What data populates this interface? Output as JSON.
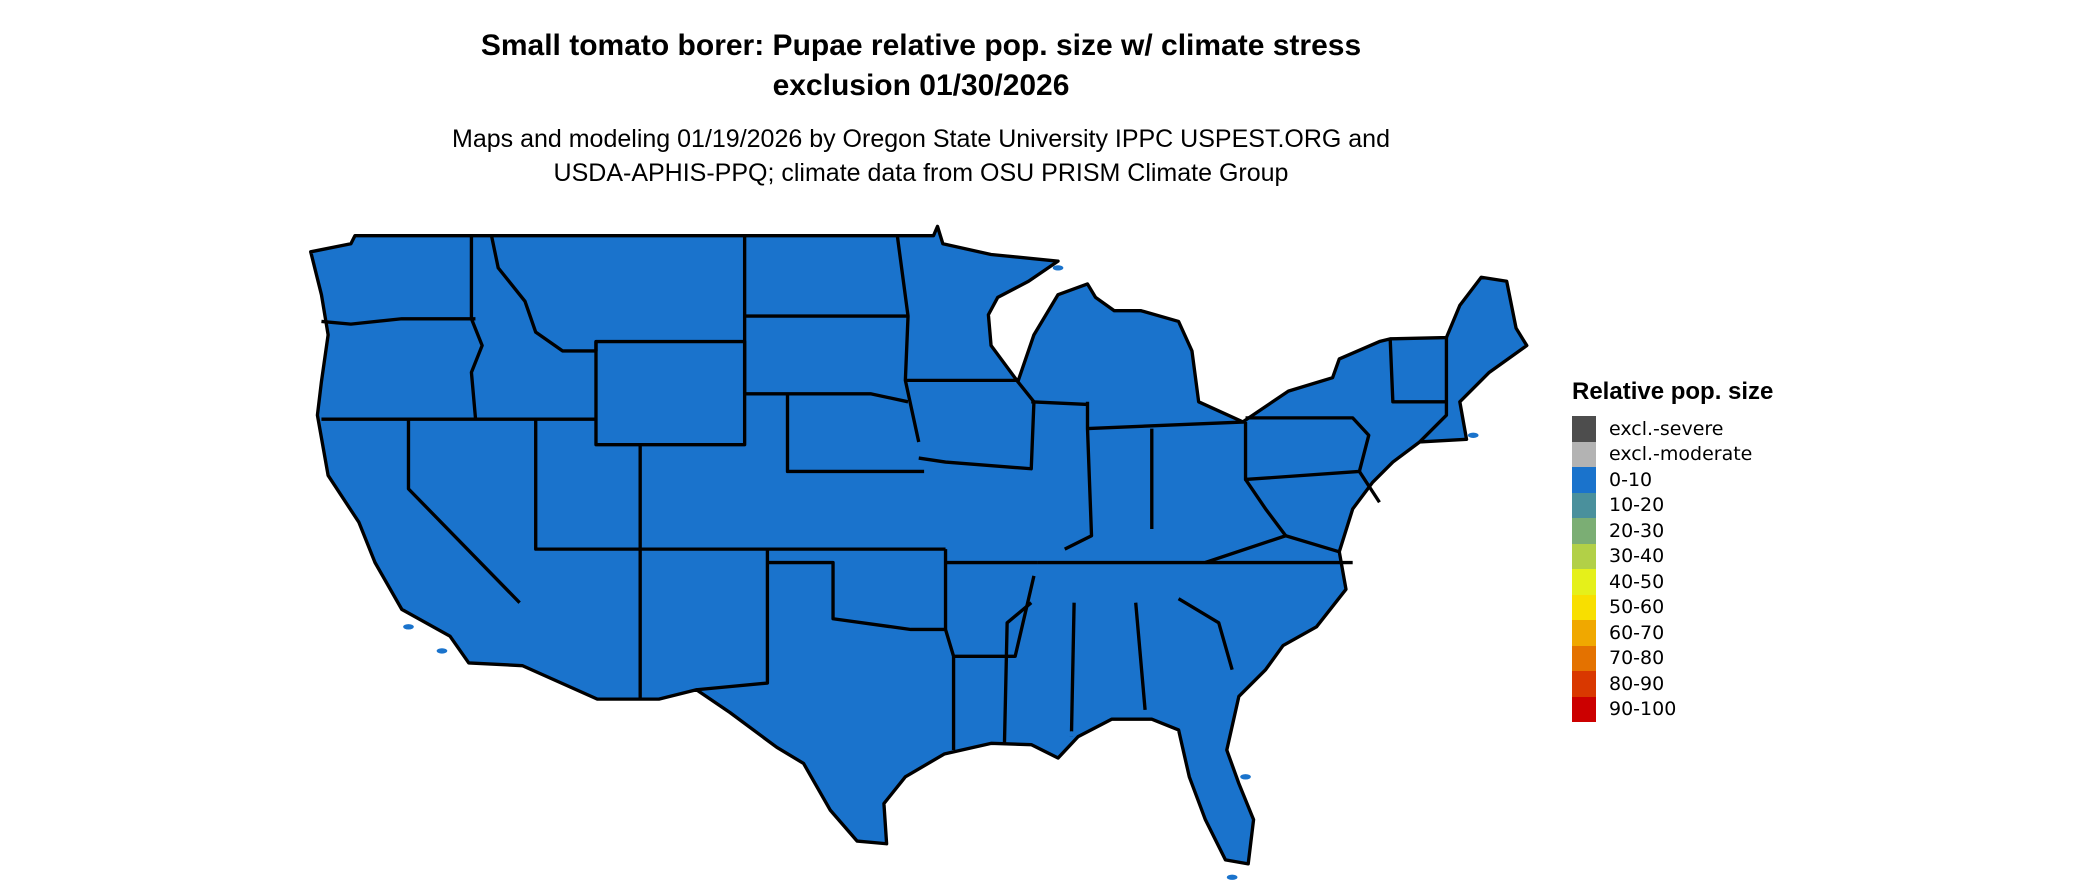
{
  "chart_data": {
    "type": "map",
    "title_line1": "Small tomato borer: Pupae relative pop. size w/ climate stress",
    "title_line2": "exclusion 01/30/2026",
    "subtitle_line1": "Maps and modeling 01/19/2026 by Oregon State University IPPC USPEST.ORG and",
    "subtitle_line2": "USDA-APHIS-PPQ; climate data from OSU PRISM Climate Group",
    "region": "Contiguous United States",
    "displayed_class": "0-10",
    "fill_color": "#1A73CC",
    "legend": {
      "title": "Relative pop. size",
      "placement": "right",
      "items": [
        {
          "label": "excl.-severe",
          "color": "#4D4D4D"
        },
        {
          "label": "excl.-moderate",
          "color": "#B3B3B3"
        },
        {
          "label": "0-10",
          "color": "#1A73CC"
        },
        {
          "label": "10-20",
          "color": "#4A909C"
        },
        {
          "label": "20-30",
          "color": "#7BAE74"
        },
        {
          "label": "30-40",
          "color": "#B2D047"
        },
        {
          "label": "40-50",
          "color": "#E5F01A"
        },
        {
          "label": "50-60",
          "color": "#F8DF00"
        },
        {
          "label": "60-70",
          "color": "#F0A800"
        },
        {
          "label": "70-80",
          "color": "#E47200"
        },
        {
          "label": "80-90",
          "color": "#D93800"
        },
        {
          "label": "90-100",
          "color": "#CC0000"
        }
      ]
    }
  }
}
